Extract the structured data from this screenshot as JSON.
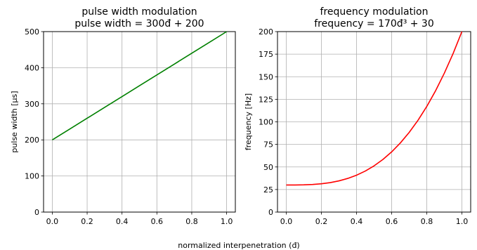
{
  "figure": {
    "xlabel": "normalized interpenetration (đ)"
  },
  "chart_data": [
    {
      "type": "line",
      "title_line1": "pulse width modulation",
      "title_line2": "pulse width = 300đ + 200",
      "xlabel": "",
      "ylabel": "pulse width [µs]",
      "xlim": [
        -0.05,
        1.05
      ],
      "ylim": [
        0,
        500
      ],
      "xticks": [
        "0.0",
        "0.2",
        "0.4",
        "0.6",
        "0.8",
        "1.0"
      ],
      "yticks": [
        "0",
        "100",
        "200",
        "300",
        "400",
        "500"
      ],
      "grid": true,
      "series": [
        {
          "color": "#008000",
          "x": [
            0.0,
            0.1,
            0.2,
            0.3,
            0.4,
            0.5,
            0.6,
            0.7,
            0.8,
            0.9,
            1.0
          ],
          "y": [
            200,
            230,
            260,
            290,
            320,
            350,
            380,
            410,
            440,
            470,
            500
          ]
        }
      ]
    },
    {
      "type": "line",
      "title_line1": "frequency modulation",
      "title_line2": "frequency = 170đ³ + 30",
      "xlabel": "",
      "ylabel": "frequency [Hz]",
      "xlim": [
        -0.05,
        1.05
      ],
      "ylim": [
        0,
        200
      ],
      "xticks": [
        "0.0",
        "0.2",
        "0.4",
        "0.6",
        "0.8",
        "1.0"
      ],
      "yticks": [
        "0",
        "25",
        "50",
        "75",
        "100",
        "125",
        "150",
        "175",
        "200"
      ],
      "grid": true,
      "series": [
        {
          "color": "#ff0000",
          "x": [
            0.0,
            0.05,
            0.1,
            0.15,
            0.2,
            0.25,
            0.3,
            0.35,
            0.4,
            0.45,
            0.5,
            0.55,
            0.6,
            0.65,
            0.7,
            0.75,
            0.8,
            0.85,
            0.9,
            0.95,
            1.0
          ],
          "y": [
            30.0,
            30.02,
            30.17,
            30.57,
            31.36,
            32.66,
            34.59,
            37.29,
            40.88,
            45.49,
            51.25,
            58.28,
            66.72,
            76.69,
            88.31,
            101.72,
            117.04,
            134.4,
            153.93,
            175.76,
            200.0
          ]
        }
      ]
    }
  ]
}
